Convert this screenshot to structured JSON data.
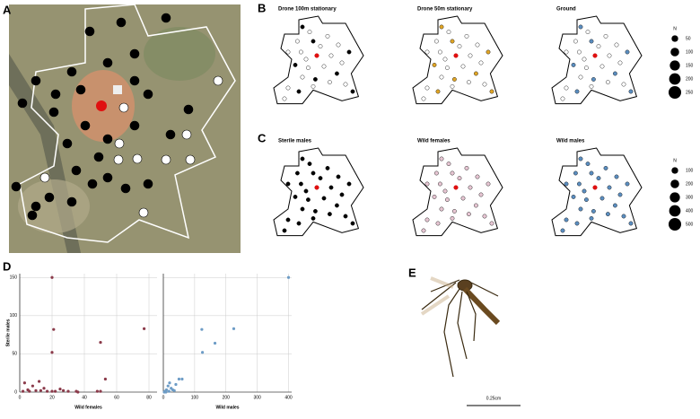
{
  "panel_labels": [
    "A",
    "B",
    "C",
    "D",
    "E"
  ],
  "maps_row1": {
    "titles": [
      "Drone 100m stationary",
      "Drone 50m stationary",
      "Ground"
    ],
    "legend": {
      "title": "N",
      "values": [
        50,
        100,
        150,
        200,
        250
      ]
    }
  },
  "maps_row2": {
    "titles": [
      "Sterile males",
      "Wild females",
      "Wild males"
    ],
    "legend": {
      "title": "N",
      "values": [
        100,
        200,
        300,
        400,
        500
      ]
    }
  },
  "chart_data": [
    {
      "type": "scatter",
      "x_label": "Wild females",
      "y_label": "Sterile males",
      "xlim": [
        0,
        85
      ],
      "ylim": [
        0,
        155
      ],
      "xticks": [
        0,
        20,
        40,
        60,
        80
      ],
      "yticks": [
        0,
        50,
        100,
        150
      ],
      "grid": true,
      "series": [
        {
          "color": "#8b3a4a",
          "x": [
            20,
            21,
            20,
            77,
            50,
            53,
            3,
            5,
            8,
            10,
            12,
            15,
            17,
            2,
            6,
            20,
            22,
            27,
            30,
            35,
            36,
            48,
            50,
            25,
            13
          ],
          "values": [
            150,
            82,
            52,
            83,
            65,
            17,
            12,
            3,
            8,
            2,
            14,
            5,
            1,
            1,
            1,
            1,
            1,
            2,
            1,
            1,
            0,
            1,
            1,
            4,
            2
          ]
        }
      ]
    },
    {
      "type": "scatter",
      "x_label": "Wild males",
      "xlim": [
        0,
        410
      ],
      "ylim": [
        0,
        155
      ],
      "xticks": [
        0,
        100,
        200,
        300,
        400
      ],
      "yticks": [
        0,
        50,
        100,
        150
      ],
      "grid": true,
      "series": [
        {
          "color": "#6d9cc6",
          "x": [
            400,
            123,
            225,
            165,
            125,
            60,
            50,
            40,
            20,
            10,
            15,
            25,
            5,
            8,
            30,
            18,
            3,
            35
          ],
          "values": [
            150,
            82,
            83,
            64,
            52,
            17,
            17,
            10,
            12,
            3,
            8,
            5,
            1,
            0,
            3,
            1,
            0,
            2
          ]
        }
      ]
    }
  ],
  "scale_bar": "0.25cm"
}
